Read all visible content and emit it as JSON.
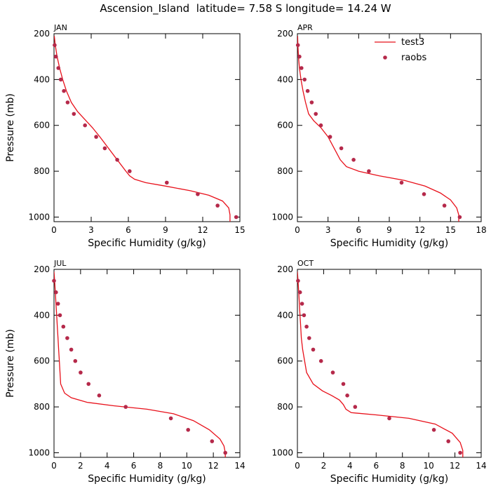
{
  "title": "Ascension_Island  latitude= 7.58 S longitude= 14.24 W",
  "legend": {
    "line_label": "test3",
    "dot_label": "raobs",
    "placement": "top-right of APR panel"
  },
  "colors": {
    "model_line": "#e8101a",
    "obs_dots": "#b5294a",
    "axes": "#000000"
  },
  "chart_data": [
    {
      "type": "line",
      "panel_label": "JAN",
      "xlabel": "Specific Humidity (g/kg)",
      "ylabel": "Pressure (mb)",
      "xlim": [
        0,
        15
      ],
      "ylim": [
        200,
        1020
      ],
      "y_inverted": true,
      "xticks": [
        0,
        3,
        6,
        9,
        12,
        15
      ],
      "yticks": [
        200,
        400,
        600,
        800,
        1000
      ],
      "series": [
        {
          "name": "test3",
          "kind": "line",
          "x": [
            0.02,
            0.1,
            0.25,
            0.45,
            0.7,
            1.0,
            1.4,
            1.9,
            2.5,
            3.1,
            3.7,
            4.4,
            5.1,
            5.8,
            6.1,
            6.5,
            7.4,
            9.0,
            11.0,
            12.5,
            13.6,
            14.1,
            14.2,
            14.2
          ],
          "y": [
            210,
            250,
            300,
            350,
            400,
            450,
            500,
            540,
            575,
            610,
            650,
            700,
            750,
            800,
            820,
            835,
            850,
            865,
            885,
            905,
            930,
            960,
            990,
            1020
          ]
        },
        {
          "name": "raobs",
          "kind": "scatter",
          "x": [
            0.05,
            0.15,
            0.35,
            0.55,
            0.8,
            1.1,
            1.6,
            2.5,
            3.4,
            4.1,
            5.1,
            6.1,
            9.1,
            11.6,
            13.2,
            14.7
          ],
          "y": [
            250,
            300,
            350,
            400,
            450,
            500,
            550,
            600,
            650,
            700,
            750,
            800,
            850,
            900,
            950,
            1000
          ]
        }
      ]
    },
    {
      "type": "line",
      "panel_label": "APR",
      "xlabel": "Specific Humidity (g/kg)",
      "ylabel": "",
      "xlim": [
        0,
        18
      ],
      "ylim": [
        200,
        1020
      ],
      "y_inverted": true,
      "xticks": [
        0,
        3,
        6,
        9,
        12,
        15,
        18
      ],
      "yticks": [
        200,
        400,
        600,
        800,
        1000
      ],
      "series": [
        {
          "name": "test3",
          "kind": "line",
          "x": [
            0.02,
            0.05,
            0.1,
            0.2,
            0.35,
            0.55,
            0.8,
            1.1,
            1.6,
            2.3,
            3.0,
            3.6,
            4.2,
            4.8,
            6.0,
            8.0,
            10.5,
            12.5,
            14.0,
            15.0,
            15.6,
            15.8,
            15.8
          ],
          "y": [
            210,
            250,
            300,
            350,
            400,
            450,
            500,
            550,
            580,
            610,
            650,
            700,
            750,
            780,
            800,
            820,
            840,
            865,
            895,
            925,
            960,
            990,
            1020
          ]
        },
        {
          "name": "raobs",
          "kind": "scatter",
          "x": [
            0.05,
            0.2,
            0.4,
            0.7,
            1.0,
            1.4,
            1.8,
            2.3,
            3.2,
            4.3,
            5.5,
            7.0,
            10.2,
            12.4,
            14.4,
            15.9
          ],
          "y": [
            250,
            300,
            350,
            400,
            450,
            500,
            550,
            600,
            650,
            700,
            750,
            800,
            850,
            900,
            950,
            1000
          ]
        }
      ]
    },
    {
      "type": "line",
      "panel_label": "JUL",
      "xlabel": "Specific Humidity (g/kg)",
      "ylabel": "Pressure (mb)",
      "xlim": [
        0,
        14
      ],
      "ylim": [
        200,
        1020
      ],
      "y_inverted": true,
      "xticks": [
        0,
        2,
        4,
        6,
        8,
        10,
        12,
        14
      ],
      "yticks": [
        200,
        400,
        600,
        800,
        1000
      ],
      "series": [
        {
          "name": "test3",
          "kind": "line",
          "x": [
            0.0,
            0.05,
            0.1,
            0.15,
            0.2,
            0.25,
            0.3,
            0.35,
            0.4,
            0.5,
            0.8,
            1.3,
            2.5,
            4.5,
            7.0,
            9.0,
            10.5,
            11.7,
            12.5,
            12.8,
            12.9,
            12.9
          ],
          "y": [
            210,
            250,
            300,
            350,
            400,
            450,
            500,
            550,
            600,
            700,
            740,
            760,
            780,
            795,
            810,
            830,
            860,
            900,
            940,
            970,
            1000,
            1020
          ]
        },
        {
          "name": "raobs",
          "kind": "scatter",
          "x": [
            0.0,
            0.15,
            0.3,
            0.45,
            0.7,
            1.0,
            1.3,
            1.6,
            2.0,
            2.6,
            3.4,
            5.4,
            8.8,
            10.1,
            11.9,
            12.9
          ],
          "y": [
            250,
            300,
            350,
            400,
            450,
            500,
            550,
            600,
            650,
            700,
            750,
            800,
            850,
            900,
            950,
            1000
          ]
        }
      ]
    },
    {
      "type": "line",
      "panel_label": "OCT",
      "xlabel": "Specific Humidity (g/kg)",
      "ylabel": "",
      "xlim": [
        0,
        14
      ],
      "ylim": [
        200,
        1020
      ],
      "y_inverted": true,
      "xticks": [
        0,
        2,
        4,
        6,
        8,
        10,
        12,
        14
      ],
      "yticks": [
        200,
        400,
        600,
        800,
        1000
      ],
      "series": [
        {
          "name": "test3",
          "kind": "line",
          "x": [
            0.0,
            0.05,
            0.1,
            0.15,
            0.2,
            0.25,
            0.3,
            0.4,
            0.7,
            1.2,
            1.9,
            2.6,
            3.2,
            3.5,
            3.7,
            4.1,
            6.0,
            8.5,
            10.5,
            11.8,
            12.4,
            12.6,
            12.6
          ],
          "y": [
            210,
            250,
            300,
            350,
            400,
            450,
            500,
            550,
            650,
            700,
            730,
            750,
            770,
            790,
            810,
            825,
            835,
            850,
            875,
            915,
            955,
            990,
            1020
          ]
        },
        {
          "name": "raobs",
          "kind": "scatter",
          "x": [
            0.05,
            0.2,
            0.35,
            0.5,
            0.7,
            0.9,
            1.2,
            1.8,
            2.7,
            3.5,
            3.8,
            4.4,
            7.0,
            10.4,
            11.5,
            12.4
          ],
          "y": [
            250,
            300,
            350,
            400,
            450,
            500,
            550,
            600,
            650,
            700,
            750,
            800,
            850,
            900,
            950,
            1000
          ]
        }
      ]
    }
  ]
}
